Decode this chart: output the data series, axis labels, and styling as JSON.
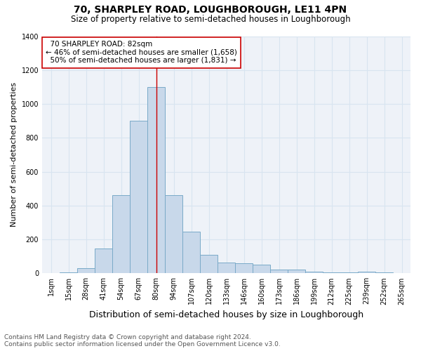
{
  "title": "70, SHARPLEY ROAD, LOUGHBOROUGH, LE11 4PN",
  "subtitle": "Size of property relative to semi-detached houses in Loughborough",
  "xlabel": "Distribution of semi-detached houses by size in Loughborough",
  "ylabel": "Number of semi-detached properties",
  "footer_line1": "Contains HM Land Registry data © Crown copyright and database right 2024.",
  "footer_line2": "Contains public sector information licensed under the Open Government Licence v3.0.",
  "categories": [
    "1sqm",
    "15sqm",
    "28sqm",
    "41sqm",
    "54sqm",
    "67sqm",
    "80sqm",
    "94sqm",
    "107sqm",
    "120sqm",
    "133sqm",
    "146sqm",
    "160sqm",
    "173sqm",
    "186sqm",
    "199sqm",
    "212sqm",
    "225sqm",
    "239sqm",
    "252sqm",
    "265sqm"
  ],
  "values": [
    3,
    5,
    30,
    145,
    460,
    900,
    1100,
    460,
    245,
    108,
    65,
    60,
    50,
    20,
    20,
    10,
    5,
    5,
    10,
    5,
    2
  ],
  "bar_color": "#c8d8ea",
  "bar_edge_color": "#7aaac8",
  "bar_edge_width": 0.7,
  "property_label": "70 SHARPLEY ROAD: 82sqm",
  "pct_smaller": 46,
  "n_smaller": "1,658",
  "pct_larger": 50,
  "n_larger": "1,831",
  "vline_color": "#cc0000",
  "vline_x_index": 6,
  "annotation_box_color": "#ffffff",
  "annotation_box_edge_color": "#cc0000",
  "ylim": [
    0,
    1400
  ],
  "yticks": [
    0,
    200,
    400,
    600,
    800,
    1000,
    1200,
    1400
  ],
  "grid_color": "#d8e4f0",
  "bg_color": "#eef2f8",
  "title_fontsize": 10,
  "subtitle_fontsize": 8.5,
  "xlabel_fontsize": 9,
  "ylabel_fontsize": 8,
  "tick_fontsize": 7,
  "annotation_fontsize": 7.5,
  "footer_fontsize": 6.5
}
